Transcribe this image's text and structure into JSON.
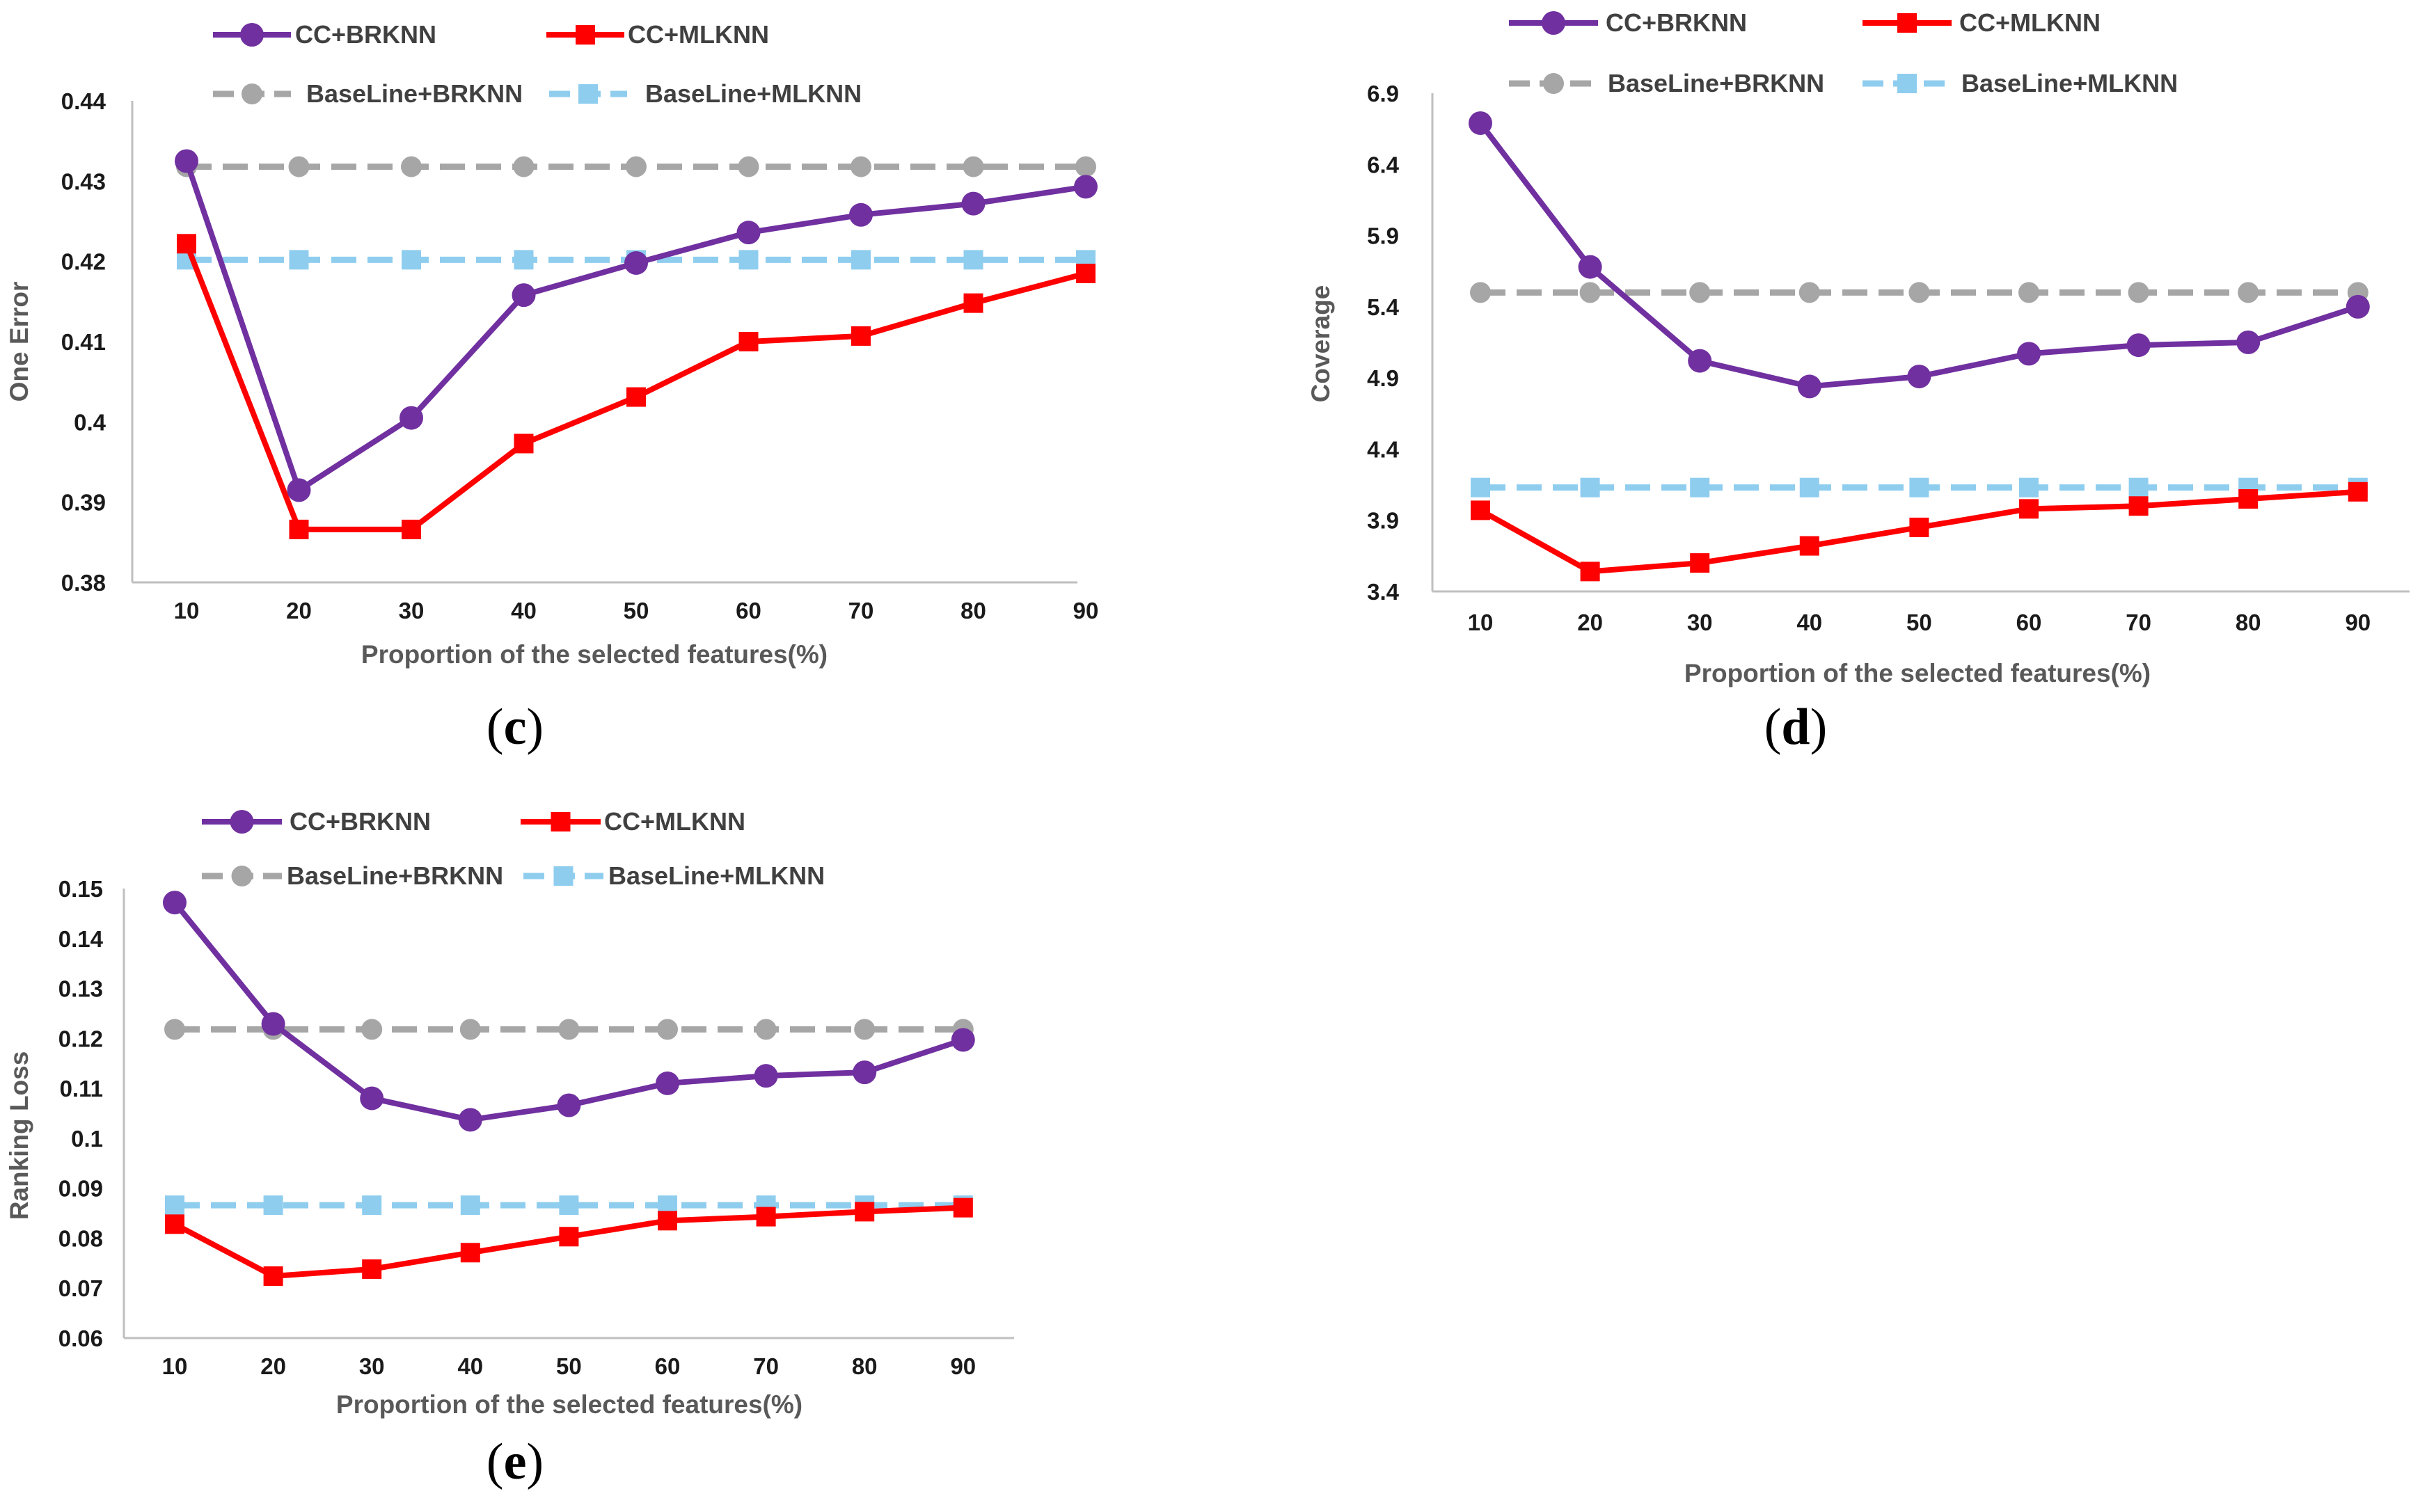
{
  "chart_data": [
    {
      "panel": "(c)",
      "panel_letter": "c",
      "type": "line",
      "title": "",
      "xlabel": "Proportion  of the selected features(%)",
      "ylabel": "One Error",
      "categories": [
        "10",
        "20",
        "30",
        "40",
        "50",
        "60",
        "70",
        "80",
        "90"
      ],
      "ylim": [
        0.38,
        0.44
      ],
      "yticks": [
        "0.38",
        "0.39",
        "0.4",
        "0.41",
        "0.42",
        "0.43",
        "0.44"
      ],
      "grid": false,
      "legend_position": "top",
      "series": [
        {
          "name": "CC+BRKNN",
          "values": [
            0.4325,
            0.3915,
            0.4005,
            0.4158,
            0.4198,
            0.4236,
            0.4258,
            0.4272,
            0.4293
          ],
          "color": "#7030A0",
          "marker": "circle",
          "dashed": false
        },
        {
          "name": "CC+MLKNN",
          "values": [
            0.4222,
            0.3866,
            0.3866,
            0.3973,
            0.4031,
            0.41,
            0.4107,
            0.4148,
            0.4185
          ],
          "color": "#FF0000",
          "marker": "square",
          "dashed": false
        },
        {
          "name": "BaseLine+BRKNN",
          "values": [
            0.4318,
            0.4318,
            0.4318,
            0.4318,
            0.4318,
            0.4318,
            0.4318,
            0.4318,
            0.4318
          ],
          "color": "#A6A6A6",
          "marker": "circle",
          "dashed": true
        },
        {
          "name": "BaseLine+MLKNN",
          "values": [
            0.4202,
            0.4202,
            0.4202,
            0.4202,
            0.4202,
            0.4202,
            0.4202,
            0.4202,
            0.4202
          ],
          "color": "#8FCDEF",
          "marker": "square",
          "dashed": true
        }
      ]
    },
    {
      "panel": "(d)",
      "panel_letter": "d",
      "type": "line",
      "title": "",
      "xlabel": "Proportion  of the selected features(%)",
      "ylabel": "Coverage",
      "categories": [
        "10",
        "20",
        "30",
        "40",
        "50",
        "60",
        "70",
        "80",
        "90"
      ],
      "ylim": [
        3.4,
        6.9
      ],
      "yticks": [
        "3.4",
        "3.9",
        "4.4",
        "4.9",
        "5.4",
        "5.9",
        "6.4",
        "6.9"
      ],
      "grid": false,
      "legend_position": "top",
      "series": [
        {
          "name": "CC+BRKNN",
          "values": [
            6.69,
            5.68,
            5.02,
            4.84,
            4.91,
            5.07,
            5.13,
            5.15,
            5.4
          ],
          "color": "#7030A0",
          "marker": "circle",
          "dashed": false
        },
        {
          "name": "CC+MLKNN",
          "values": [
            3.97,
            3.54,
            3.6,
            3.72,
            3.85,
            3.98,
            4.0,
            4.05,
            4.1
          ],
          "color": "#FF0000",
          "marker": "square",
          "dashed": false
        },
        {
          "name": "BaseLine+BRKNN",
          "values": [
            5.5,
            5.5,
            5.5,
            5.5,
            5.5,
            5.5,
            5.5,
            5.5,
            5.5
          ],
          "color": "#A6A6A6",
          "marker": "circle",
          "dashed": true
        },
        {
          "name": "BaseLine+MLKNN",
          "values": [
            4.13,
            4.13,
            4.13,
            4.13,
            4.13,
            4.13,
            4.13,
            4.13,
            4.13
          ],
          "color": "#8FCDEF",
          "marker": "square",
          "dashed": true
        }
      ]
    },
    {
      "panel": "(e)",
      "panel_letter": "e",
      "type": "line",
      "title": "",
      "xlabel": "Proportion  of the selected features(%)",
      "ylabel": "Ranking Loss",
      "categories": [
        "10",
        "20",
        "30",
        "40",
        "50",
        "60",
        "70",
        "80",
        "90"
      ],
      "ylim": [
        0.06,
        0.15
      ],
      "yticks": [
        "0.06",
        "0.07",
        "0.08",
        "0.09",
        "0.1",
        "0.11",
        "0.12",
        "0.13",
        "0.14",
        "0.15"
      ],
      "grid": false,
      "legend_position": "top",
      "series": [
        {
          "name": "CC+BRKNN",
          "values": [
            0.1472,
            0.1229,
            0.108,
            0.1037,
            0.1066,
            0.111,
            0.1125,
            0.1132,
            0.1197
          ],
          "color": "#7030A0",
          "marker": "circle",
          "dashed": false
        },
        {
          "name": "CC+MLKNN",
          "values": [
            0.0828,
            0.0724,
            0.0738,
            0.0771,
            0.0803,
            0.0835,
            0.0843,
            0.0853,
            0.0861
          ],
          "color": "#FF0000",
          "marker": "square",
          "dashed": false
        },
        {
          "name": "BaseLine+BRKNN",
          "values": [
            0.1218,
            0.1218,
            0.1218,
            0.1218,
            0.1218,
            0.1218,
            0.1218,
            0.1218,
            0.1218
          ],
          "color": "#A6A6A6",
          "marker": "circle",
          "dashed": true
        },
        {
          "name": "BaseLine+MLKNN",
          "values": [
            0.0866,
            0.0866,
            0.0866,
            0.0866,
            0.0866,
            0.0866,
            0.0866,
            0.0866,
            0.0866
          ],
          "color": "#8FCDEF",
          "marker": "square",
          "dashed": true
        }
      ]
    }
  ]
}
